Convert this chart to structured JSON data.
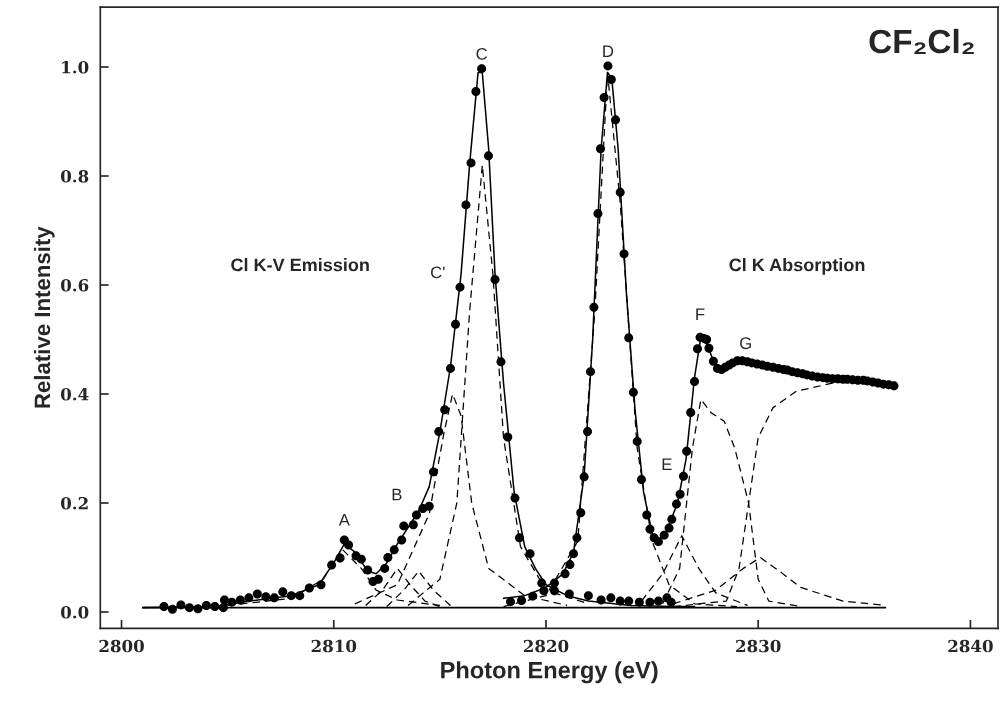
{
  "chart_data": {
    "type": "scatter",
    "title": "CF₂Cl₂",
    "xlabel": "Photon Energy (eV)",
    "ylabel": "Relative Intensity",
    "xlim": [
      2799,
      2841.3
    ],
    "ylim": [
      -0.03,
      1.11
    ],
    "xticks": [
      2800,
      2810,
      2820,
      2830,
      2840
    ],
    "yticks": [
      {
        "value": 0,
        "label": "0.0"
      },
      {
        "value": 0.2,
        "label": "0.2"
      },
      {
        "value": 0.4,
        "label": "0.4"
      },
      {
        "value": 0.6,
        "label": "0.6"
      },
      {
        "value": 0.8,
        "label": "0.8"
      },
      {
        "value": 1.0,
        "label": "1.0"
      }
    ],
    "grid": false,
    "legend": false,
    "series": [
      {
        "marker": "circle",
        "color": "#000000",
        "x": [
          2802.0,
          2802.4,
          2802.8,
          2803.2,
          2803.6,
          2804.0,
          2804.4,
          2804.8,
          2804.85,
          2805.2,
          2805.6,
          2806.0,
          2806.4,
          2806.8,
          2807.2,
          2807.6,
          2808.0,
          2808.4,
          2808.85,
          2809.4,
          2809.9,
          2810.3,
          2810.5,
          2810.7,
          2811.05,
          2811.3,
          2811.6,
          2811.85,
          2812.1,
          2812.4,
          2812.55,
          2812.85,
          2813.2,
          2813.3,
          2813.75,
          2813.9,
          2814.2,
          2814.5,
          2814.7,
          2814.95,
          2815.23,
          2815.5,
          2815.74,
          2815.95,
          2816.23,
          2816.47,
          2816.7,
          2816.97,
          2817.29,
          2817.6,
          2817.88,
          2818.2,
          2818.54,
          2818.75,
          2819.25,
          2819.8,
          2820.4,
          2821.1,
          2822.0,
          2822.6,
          2823.06,
          2823.5,
          2823.9,
          2824.4,
          2824.9,
          2825.3,
          2825.7,
          2825.9
        ],
        "values": [
          0.01,
          0.005,
          0.013,
          0.008,
          0.006,
          0.012,
          0.01,
          0.008,
          0.022,
          0.018,
          0.022,
          0.026,
          0.033,
          0.028,
          0.026,
          0.037,
          0.03,
          0.03,
          0.044,
          0.05,
          0.086,
          0.099,
          0.132,
          0.123,
          0.103,
          0.097,
          0.077,
          0.056,
          0.06,
          0.08,
          0.1,
          0.114,
          0.132,
          0.158,
          0.16,
          0.178,
          0.19,
          0.194,
          0.257,
          0.331,
          0.371,
          0.447,
          0.528,
          0.596,
          0.747,
          0.824,
          0.955,
          0.997,
          0.837,
          0.61,
          0.459,
          0.321,
          0.209,
          0.136,
          0.107,
          0.053,
          0.039,
          0.033,
          0.03,
          0.022,
          0.026,
          0.02,
          0.02,
          0.018,
          0.018,
          0.02,
          0.026,
          0.018
        ]
      },
      {
        "marker": "circle",
        "color": "#000000",
        "x": [
          2818.33,
          2818.85,
          2819.38,
          2819.9,
          2820.4,
          2820.9,
          2821.13,
          2821.3,
          2821.46,
          2821.64,
          2821.8,
          2821.96,
          2822.1,
          2822.26,
          2822.45,
          2822.57,
          2822.74,
          2822.92,
          2823.08,
          2823.28,
          2823.5,
          2823.68,
          2823.9,
          2824.12,
          2824.3,
          2824.5,
          2824.75,
          2824.9,
          2825.1,
          2825.3,
          2825.57,
          2825.8,
          2825.93,
          2826.15,
          2826.32,
          2826.48,
          2826.63,
          2826.82,
          2827.0,
          2827.14,
          2827.26,
          2827.45,
          2827.57,
          2827.68,
          2827.89,
          2828.08,
          2828.27,
          2828.45,
          2828.63,
          2828.8,
          2829.02,
          2829.25,
          2829.49,
          2829.7,
          2829.95,
          2830.2,
          2830.43,
          2830.7,
          2830.95,
          2831.2,
          2831.37,
          2831.6,
          2831.85,
          2832.1,
          2832.3,
          2832.55,
          2832.8,
          2833.05,
          2833.26,
          2833.5,
          2833.75,
          2834.0,
          2834.2,
          2834.45,
          2834.7,
          2834.95,
          2835.14,
          2835.4,
          2835.65,
          2835.9,
          2836.15,
          2836.4
        ],
        "values": [
          0.019,
          0.021,
          0.029,
          0.039,
          0.053,
          0.07,
          0.087,
          0.107,
          0.136,
          0.182,
          0.248,
          0.331,
          0.441,
          0.559,
          0.731,
          0.85,
          0.944,
          1.002,
          0.977,
          0.903,
          0.77,
          0.657,
          0.503,
          0.403,
          0.313,
          0.243,
          0.178,
          0.152,
          0.136,
          0.129,
          0.141,
          0.154,
          0.17,
          0.198,
          0.216,
          0.249,
          0.295,
          0.366,
          0.423,
          0.483,
          0.504,
          0.502,
          0.5,
          0.484,
          0.46,
          0.447,
          0.445,
          0.449,
          0.453,
          0.457,
          0.461,
          0.461,
          0.459,
          0.457,
          0.455,
          0.453,
          0.451,
          0.449,
          0.447,
          0.445,
          0.444,
          0.441,
          0.439,
          0.437,
          0.435,
          0.433,
          0.431,
          0.43,
          0.429,
          0.428,
          0.428,
          0.427,
          0.427,
          0.426,
          0.425,
          0.425,
          0.424,
          0.422,
          0.42,
          0.418,
          0.417,
          0.415
        ]
      },
      {
        "type": "line",
        "line_style": "solid",
        "color": "#000000",
        "x": [
          2801,
          2804.5,
          2806,
          2808,
          2809.3,
          2810,
          2810.5,
          2811,
          2811.6,
          2812,
          2812.5,
          2813,
          2813.5,
          2814,
          2814.5,
          2815,
          2815.5,
          2816,
          2816.4,
          2816.8,
          2817.0,
          2817.3,
          2817.6,
          2818,
          2818.5,
          2819,
          2819.5,
          2820,
          2821,
          2822,
          2824,
          2826,
          2827
        ],
        "values": [
          0.008,
          0.01,
          0.02,
          0.03,
          0.05,
          0.09,
          0.125,
          0.11,
          0.075,
          0.07,
          0.09,
          0.125,
          0.155,
          0.185,
          0.23,
          0.33,
          0.45,
          0.62,
          0.82,
          0.99,
          0.99,
          0.85,
          0.62,
          0.42,
          0.22,
          0.12,
          0.08,
          0.05,
          0.03,
          0.02,
          0.012,
          0.01,
          0.01
        ]
      },
      {
        "type": "line",
        "line_style": "solid",
        "color": "#000000",
        "x": [
          2818,
          2819,
          2820,
          2820.8,
          2821.3,
          2821.8,
          2822.2,
          2822.6,
          2822.9,
          2823.1,
          2823.4,
          2823.8,
          2824.2,
          2824.6,
          2825.0,
          2825.3,
          2825.7,
          2826.2,
          2826.6,
          2827.0,
          2827.3,
          2827.6,
          2828.0,
          2828.3,
          2829,
          2830,
          2831,
          2832,
          2833,
          2834,
          2835,
          2836.4
        ],
        "values": [
          0.025,
          0.03,
          0.045,
          0.07,
          0.11,
          0.25,
          0.5,
          0.85,
          0.99,
          0.98,
          0.85,
          0.58,
          0.37,
          0.22,
          0.145,
          0.13,
          0.15,
          0.2,
          0.28,
          0.43,
          0.505,
          0.49,
          0.45,
          0.445,
          0.46,
          0.455,
          0.445,
          0.437,
          0.43,
          0.427,
          0.424,
          0.415
        ]
      },
      {
        "type": "line",
        "line_style": "solid",
        "color": "#000000",
        "x": [
          2801,
          2836
        ],
        "values": [
          0.008,
          0.008
        ]
      },
      {
        "type": "line",
        "line_style": "dashed",
        "color": "#000000",
        "x": [
          2805,
          2808,
          2809.5,
          2810.4,
          2811.3,
          2812,
          2813,
          2815
        ],
        "values": [
          0.012,
          0.025,
          0.06,
          0.115,
          0.08,
          0.04,
          0.022,
          0.012
        ]
      },
      {
        "type": "line",
        "line_style": "dashed",
        "color": "#000000",
        "x": [
          2811.5,
          2812.3,
          2813,
          2813.6,
          2814.3,
          2815
        ],
        "values": [
          0.012,
          0.04,
          0.08,
          0.05,
          0.02,
          0.01
        ]
      },
      {
        "type": "line",
        "line_style": "dashed",
        "color": "#000000",
        "x": [
          2812.5,
          2813.3,
          2814,
          2814.7,
          2815.5
        ],
        "values": [
          0.01,
          0.04,
          0.075,
          0.04,
          0.012
        ]
      },
      {
        "type": "line",
        "line_style": "dashed",
        "color": "#000000",
        "x": [
          2811,
          2813,
          2814.5,
          2815.2,
          2815.6,
          2816,
          2816.5,
          2817.3,
          2819,
          2821
        ],
        "values": [
          0.015,
          0.05,
          0.18,
          0.33,
          0.4,
          0.36,
          0.2,
          0.08,
          0.03,
          0.012
        ]
      },
      {
        "type": "line",
        "line_style": "dashed",
        "color": "#000000",
        "x": [
          2813.5,
          2815,
          2815.8,
          2816.4,
          2817.0,
          2817.5,
          2818,
          2818.8,
          2820,
          2822
        ],
        "values": [
          0.012,
          0.06,
          0.2,
          0.55,
          0.82,
          0.62,
          0.32,
          0.12,
          0.04,
          0.015
        ]
      },
      {
        "type": "line",
        "line_style": "dashed",
        "color": "#000000",
        "x": [
          2818,
          2820,
          2821.5,
          2822.3,
          2822.9,
          2823.5,
          2824.3,
          2825,
          2825.8,
          2827,
          2829
        ],
        "values": [
          0.01,
          0.03,
          0.13,
          0.55,
          0.99,
          0.75,
          0.3,
          0.13,
          0.05,
          0.015,
          0.01
        ]
      },
      {
        "type": "line",
        "line_style": "dashed",
        "color": "#000000",
        "x": [
          2824.5,
          2825.5,
          2826.4,
          2827.2,
          2828,
          2829.5
        ],
        "values": [
          0.02,
          0.07,
          0.14,
          0.08,
          0.035,
          0.012
        ]
      },
      {
        "type": "line",
        "line_style": "dashed",
        "color": "#000000",
        "x": [
          2825.5,
          2826.3,
          2826.9,
          2827.3,
          2827.8,
          2828.4,
          2828.9,
          2829.55,
          2830.0,
          2830.5,
          2832
        ],
        "values": [
          0.015,
          0.08,
          0.3,
          0.39,
          0.365,
          0.35,
          0.3,
          0.2,
          0.06,
          0.02,
          0.01
        ]
      },
      {
        "type": "line",
        "line_style": "dashed",
        "color": "#000000",
        "x": [
          2826,
          2828.5,
          2829.1,
          2829.55,
          2830.0,
          2830.7,
          2831.8,
          2833.5,
          2834.5
        ],
        "values": [
          0.01,
          0.02,
          0.08,
          0.2,
          0.32,
          0.375,
          0.405,
          0.42,
          0.423
        ]
      },
      {
        "type": "line",
        "line_style": "dashed",
        "color": "#000000",
        "x": [
          2826,
          2828,
          2829.3,
          2830.1,
          2831,
          2832,
          2834,
          2836
        ],
        "values": [
          0.015,
          0.04,
          0.08,
          0.1,
          0.075,
          0.045,
          0.02,
          0.012
        ]
      }
    ],
    "annotations": [
      "Cl K-V Emission",
      "Cl K Absorption",
      {
        "text": "A",
        "x": 2810.5,
        "y": 0.132
      },
      {
        "text": "B",
        "x": 2813.3,
        "y": 0.158
      },
      {
        "text": "C'",
        "x": 2815.95,
        "y": 0.596
      },
      {
        "text": "C",
        "x": 2816.97,
        "y": 0.997
      },
      {
        "text": "D",
        "x": 2822.92,
        "y": 1.002
      },
      {
        "text": "E",
        "x": 2826.48,
        "y": 0.249
      },
      {
        "text": "F",
        "x": 2827.26,
        "y": 0.504
      },
      {
        "text": "G",
        "x": 2829.02,
        "y": 0.461
      }
    ]
  }
}
